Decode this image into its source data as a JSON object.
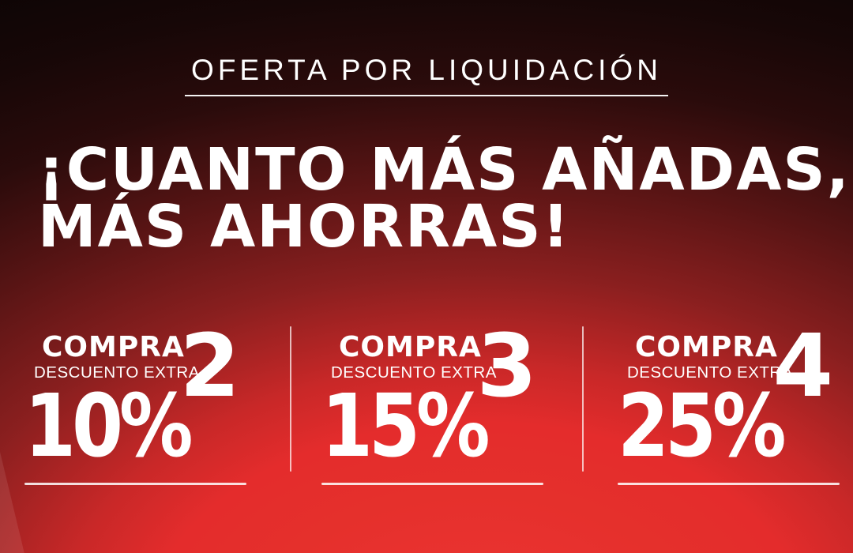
{
  "banner": {
    "eyebrow": "OFERTA POR LIQUIDACIÓN",
    "headline": {
      "line1": "¡CUANTO MÁS AÑADAS,",
      "line2": "MÁS AHORRAS!"
    },
    "offers": [
      {
        "action": "COMPRA",
        "qty": "2",
        "label": "DESCUENTO EXTRA",
        "discount": "10%"
      },
      {
        "action": "COMPRA",
        "qty": "3",
        "label": "DESCUENTO EXTRA",
        "discount": "15%"
      },
      {
        "action": "COMPRA",
        "qty": "4",
        "label": "DESCUENTO EXTRA",
        "discount": "25%"
      }
    ],
    "colors": {
      "text": "#ffffff",
      "bg_top_left": "#0e0505",
      "bg_top_right": "#331010",
      "bg_middle": "#8a1f1f",
      "bg_bottom": "#e42c2c",
      "rule": "rgba(255,255,255,0.85)"
    }
  }
}
